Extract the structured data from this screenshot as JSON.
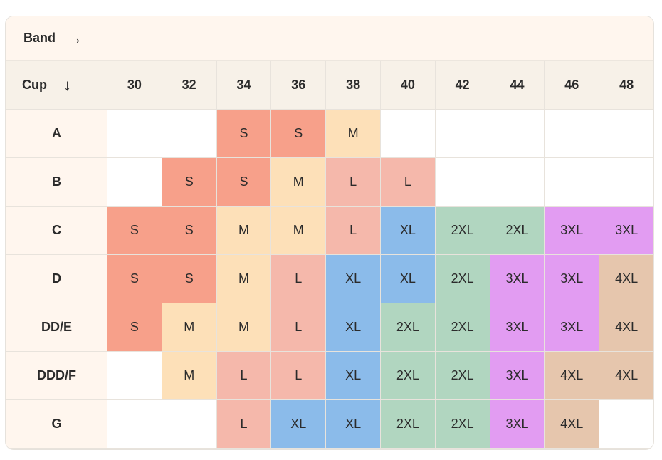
{
  "header": {
    "band_label": "Band",
    "band_arrow": "→"
  },
  "table": {
    "cup_label": "Cup",
    "cup_arrow": "↓",
    "bands": [
      "30",
      "32",
      "34",
      "36",
      "38",
      "40",
      "42",
      "44",
      "46",
      "48"
    ],
    "rows": [
      {
        "cup": "A",
        "sizes": [
          "",
          "",
          "S",
          "S",
          "M",
          "",
          "",
          "",
          "",
          ""
        ]
      },
      {
        "cup": "B",
        "sizes": [
          "",
          "S",
          "S",
          "M",
          "L",
          "L",
          "",
          "",
          "",
          ""
        ]
      },
      {
        "cup": "C",
        "sizes": [
          "S",
          "S",
          "M",
          "M",
          "L",
          "XL",
          "2XL",
          "2XL",
          "3XL",
          "3XL"
        ]
      },
      {
        "cup": "D",
        "sizes": [
          "S",
          "S",
          "M",
          "L",
          "XL",
          "XL",
          "2XL",
          "3XL",
          "3XL",
          "4XL"
        ]
      },
      {
        "cup": "DD/E",
        "sizes": [
          "S",
          "M",
          "M",
          "L",
          "XL",
          "2XL",
          "2XL",
          "3XL",
          "3XL",
          "4XL"
        ]
      },
      {
        "cup": "DDD/F",
        "sizes": [
          "",
          "M",
          "L",
          "L",
          "XL",
          "2XL",
          "2XL",
          "3XL",
          "4XL",
          "4XL"
        ]
      },
      {
        "cup": "G",
        "sizes": [
          "",
          "",
          "L",
          "XL",
          "XL",
          "2XL",
          "2XL",
          "3XL",
          "4XL",
          ""
        ]
      }
    ]
  },
  "size_colors": {
    "S": "#f7a08a",
    "M": "#fde0b8",
    "L": "#f5b8ab",
    "XL": "#8bbbea",
    "2XL": "#b1d6c0",
    "3XL": "#e29cf2",
    "4XL": "#e6c6ad"
  }
}
